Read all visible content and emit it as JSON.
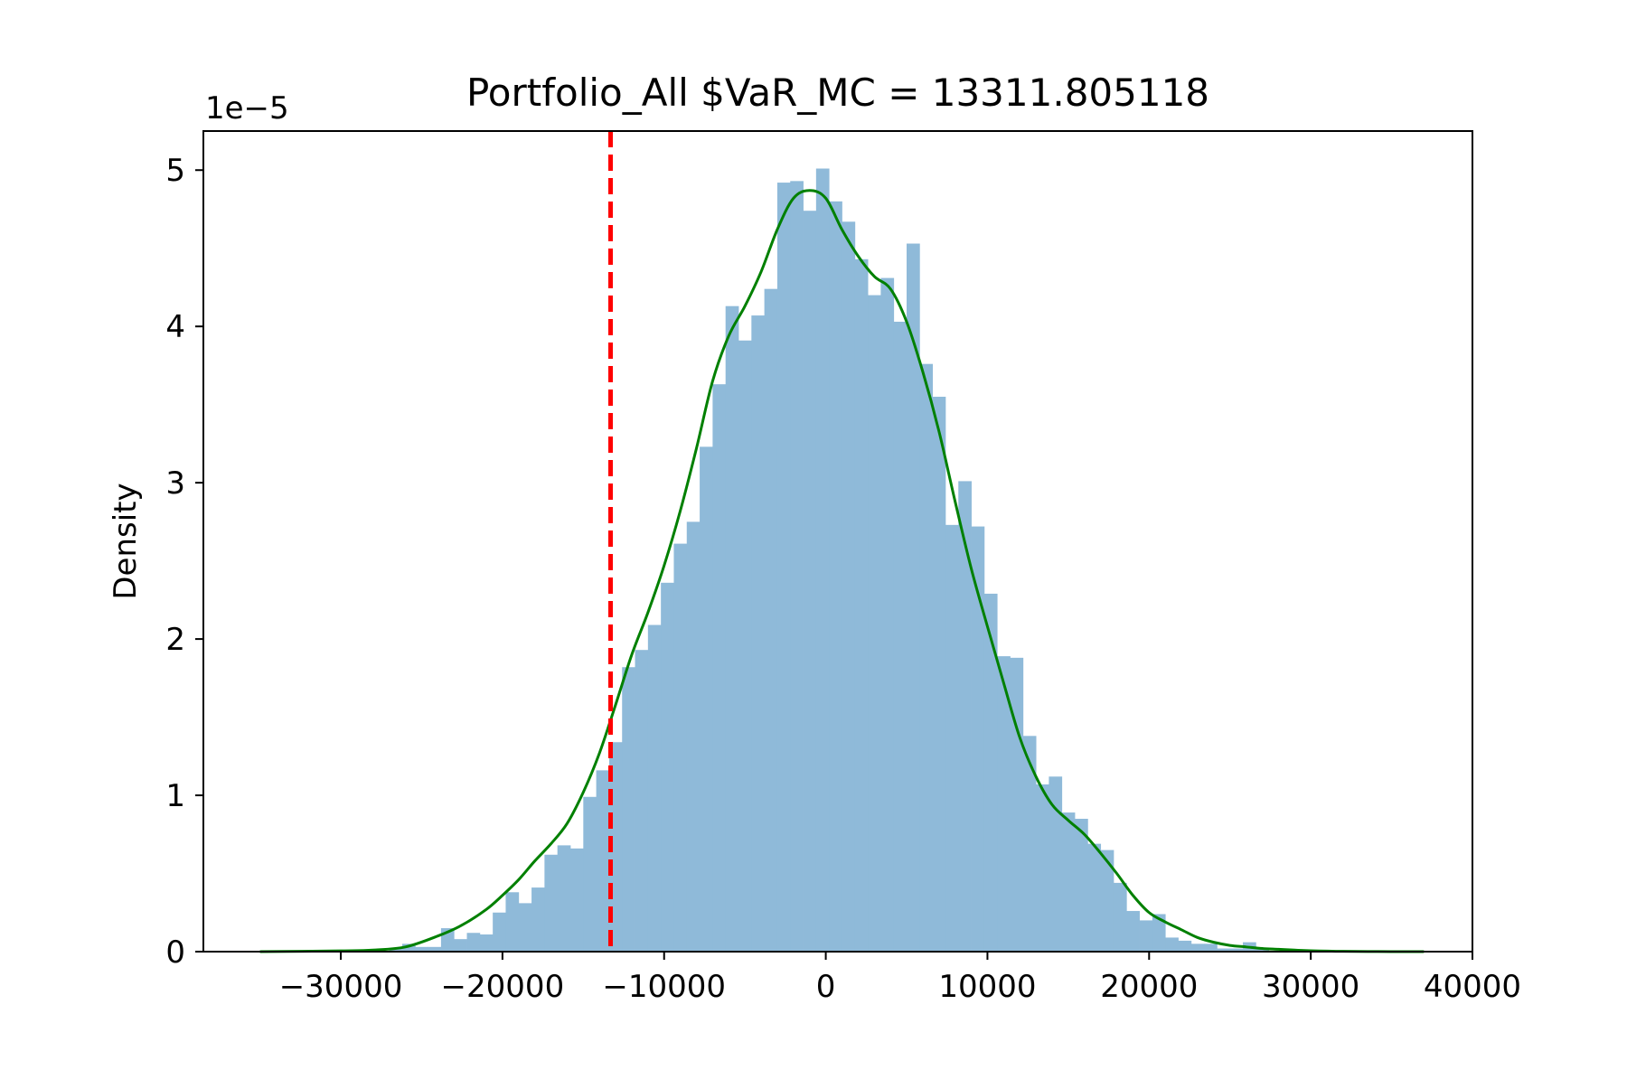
{
  "chart_data": {
    "type": "bar",
    "title": "Portfolio_All $VaR_MC = 13311.805118",
    "xlabel": "",
    "ylabel": "Density",
    "y_offset_label": "1e−5",
    "xlim": [
      -38500,
      40000
    ],
    "ylim": [
      0,
      5.25
    ],
    "x_ticks": [
      -30000,
      -20000,
      -10000,
      0,
      10000,
      20000,
      30000,
      40000
    ],
    "x_tick_labels": [
      "−30000",
      "−20000",
      "−10000",
      "0",
      "10000",
      "20000",
      "30000",
      "40000"
    ],
    "y_ticks": [
      0,
      1,
      2,
      3,
      4,
      5
    ],
    "y_tick_labels": [
      "0",
      "1",
      "2",
      "3",
      "4",
      "5"
    ],
    "grid": false,
    "histogram": {
      "color": "#8fbad9",
      "bin_edges": [
        -35000,
        -34200,
        -33400,
        -32600,
        -31800,
        -31000,
        -30200,
        -29400,
        -28600,
        -27800,
        -27000,
        -26200,
        -25400,
        -24600,
        -23800,
        -23000,
        -22200,
        -21400,
        -20600,
        -19800,
        -19000,
        -18200,
        -17400,
        -16600,
        -15800,
        -15000,
        -14200,
        -13400,
        -12600,
        -11800,
        -11000,
        -10200,
        -9400,
        -8600,
        -7800,
        -7000,
        -6200,
        -5400,
        -4600,
        -3800,
        -3000,
        -2200,
        -1400,
        -600,
        200,
        1000,
        1800,
        2600,
        3400,
        4200,
        5000,
        5800,
        6600,
        7400,
        8200,
        9000,
        9800,
        10600,
        11400,
        12200,
        13000,
        13800,
        14600,
        15400,
        16200,
        17000,
        17800,
        18600,
        19400,
        20200,
        21000,
        21800,
        22600,
        23400,
        24200,
        25000,
        25800,
        26600,
        27400,
        28200,
        29000,
        29800,
        30600,
        31400,
        32200,
        33000,
        33800,
        34600,
        35400,
        36200,
        37000
      ],
      "densities": [
        0.005,
        0.005,
        0.005,
        0.005,
        0.005,
        0.005,
        0.005,
        0.005,
        0.005,
        0.005,
        0.02,
        0.05,
        0.03,
        0.03,
        0.15,
        0.08,
        0.12,
        0.11,
        0.25,
        0.38,
        0.31,
        0.41,
        0.62,
        0.68,
        0.66,
        0.99,
        1.16,
        1.34,
        1.82,
        1.93,
        2.09,
        2.36,
        2.61,
        2.75,
        3.23,
        3.63,
        4.13,
        3.91,
        4.07,
        4.24,
        4.92,
        4.93,
        4.74,
        5.01,
        4.8,
        4.67,
        4.43,
        4.2,
        4.31,
        4.03,
        4.53,
        3.76,
        3.55,
        2.73,
        3.01,
        2.72,
        2.29,
        1.89,
        1.88,
        1.38,
        1.07,
        1.12,
        0.89,
        0.85,
        0.69,
        0.65,
        0.44,
        0.26,
        0.2,
        0.24,
        0.09,
        0.07,
        0.05,
        0.05,
        0.02,
        0.02,
        0.06,
        0.02,
        0.005,
        0.005,
        0.005,
        0.005,
        0.005,
        0.005,
        0.005,
        0.005,
        0.005,
        0.005,
        0.005,
        0.005
      ]
    },
    "kde": {
      "color": "#008000",
      "x": [
        -35000,
        -30000,
        -28000,
        -26000,
        -24000,
        -22500,
        -21000,
        -20000,
        -19000,
        -18000,
        -17000,
        -16000,
        -15000,
        -14000,
        -13000,
        -12000,
        -11000,
        -10000,
        -9000,
        -8000,
        -7000,
        -6000,
        -5000,
        -4000,
        -3000,
        -2000,
        -1000,
        0,
        1000,
        2000,
        3000,
        4000,
        5000,
        6000,
        7000,
        8000,
        9000,
        10000,
        11000,
        12000,
        13000,
        14000,
        15000,
        16000,
        17000,
        18000,
        19000,
        20000,
        21000,
        22000,
        23000,
        24000,
        25000,
        26000,
        27000,
        28000,
        29000,
        30000,
        32000,
        35000,
        37000
      ],
      "y": [
        0.0,
        0.005,
        0.01,
        0.03,
        0.1,
        0.17,
        0.27,
        0.36,
        0.46,
        0.58,
        0.69,
        0.82,
        1.02,
        1.27,
        1.58,
        1.9,
        2.17,
        2.47,
        2.82,
        3.22,
        3.65,
        3.94,
        4.13,
        4.35,
        4.62,
        4.82,
        4.87,
        4.82,
        4.62,
        4.45,
        4.32,
        4.24,
        4.03,
        3.71,
        3.33,
        2.88,
        2.45,
        2.08,
        1.72,
        1.37,
        1.12,
        0.94,
        0.84,
        0.75,
        0.63,
        0.5,
        0.36,
        0.25,
        0.19,
        0.14,
        0.09,
        0.06,
        0.04,
        0.03,
        0.02,
        0.015,
        0.01,
        0.006,
        0.002,
        0.0,
        0.0
      ]
    },
    "var_line": {
      "x": -13311.805118,
      "color": "#ff0000",
      "style": "dashed"
    }
  }
}
